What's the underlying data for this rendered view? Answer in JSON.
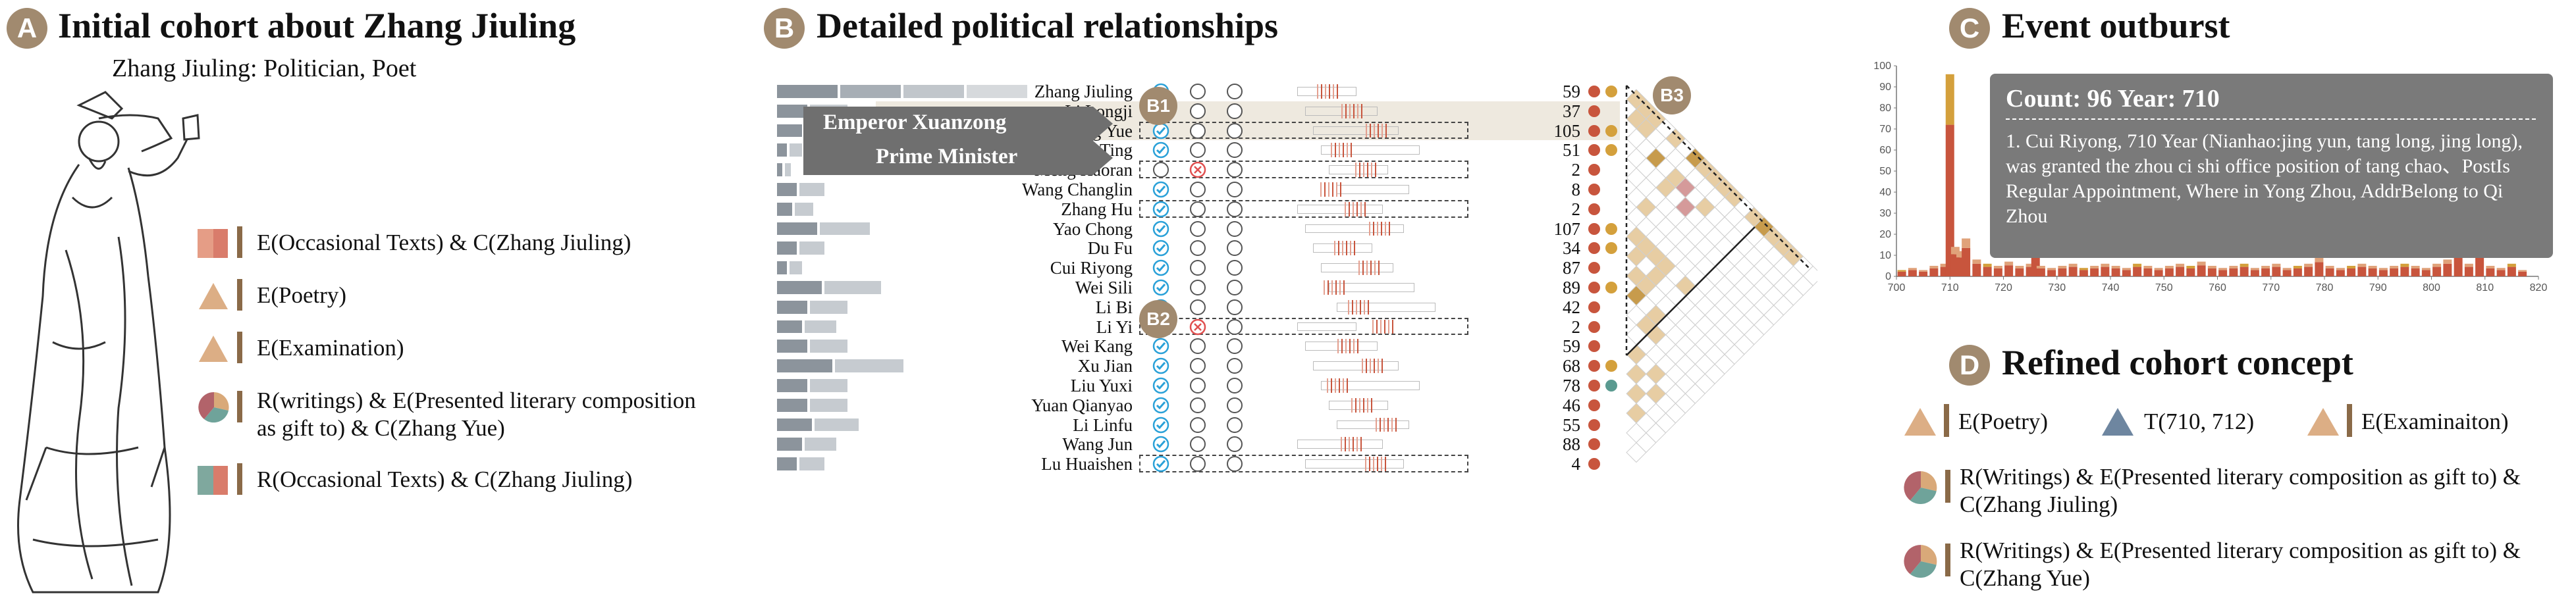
{
  "panelA": {
    "badge": "A",
    "title": "Initial cohort about Zhang Jiuling",
    "subtitle": "Zhang Jiuling: Politician, Poet",
    "legend": [
      {
        "icon": "stacked-bar-icon",
        "text": "E(Occasional Texts) & C(Zhang Jiuling)"
      },
      {
        "icon": "triangle-icon",
        "text": "E(Poetry)"
      },
      {
        "icon": "triangle-icon",
        "text": "E(Examination)"
      },
      {
        "icon": "pie-icon",
        "text": "R(writings) & E(Presented literary composition as gift to) & C(Zhang Yue)"
      },
      {
        "icon": "stacked-bar-icon",
        "text": "R(Occasional Texts) & C(Zhang Jiuling)"
      }
    ]
  },
  "panelB": {
    "badge": "B",
    "title": "Detailed political relationships",
    "b1": "B1",
    "b2": "B2",
    "b3": "B3",
    "tag_emperor": "Emperor Xuanzong",
    "tag_minister": "Prime Minister",
    "rows": [
      {
        "name": "Zhang Jiuling",
        "count": "59",
        "c1": "check",
        "c2": "empty",
        "c3": "empty",
        "bar": 0.95,
        "dot2": "#d4a03c",
        "hl": false,
        "box": false
      },
      {
        "name": "Li Longji",
        "count": "37",
        "c1": "check",
        "c2": "empty",
        "c3": "empty",
        "bar": 0.3,
        "dot2": "",
        "hl": true,
        "box": false
      },
      {
        "name": "Zhang Yue",
        "count": "105",
        "c1": "check",
        "c2": "empty",
        "c3": "empty",
        "bar": 0.25,
        "dot2": "#d4a03c",
        "hl": true,
        "box": true
      },
      {
        "name": "Su Ting",
        "count": "51",
        "c1": "check",
        "c2": "empty",
        "c3": "empty",
        "bar": 0.1,
        "dot2": "#d4a03c",
        "hl": false,
        "box": false
      },
      {
        "name": "Meng Haoran",
        "count": "2",
        "c1": "empty",
        "c2": "cross",
        "c3": "empty",
        "bar": 0.05,
        "dot2": "",
        "hl": false,
        "box": true
      },
      {
        "name": "Wang Changlin",
        "count": "8",
        "c1": "check",
        "c2": "empty",
        "c3": "empty",
        "bar": 0.2,
        "dot2": "",
        "hl": false,
        "box": false
      },
      {
        "name": "Zhang Hu",
        "count": "2",
        "c1": "check",
        "c2": "empty",
        "c3": "empty",
        "bar": 0.15,
        "dot2": "",
        "hl": false,
        "box": true
      },
      {
        "name": "Yao Chong",
        "count": "107",
        "c1": "check",
        "c2": "empty",
        "c3": "empty",
        "bar": 0.4,
        "dot2": "#d4a03c",
        "hl": false,
        "box": false
      },
      {
        "name": "Du Fu",
        "count": "34",
        "c1": "check",
        "c2": "empty",
        "c3": "empty",
        "bar": 0.2,
        "dot2": "#d4a03c",
        "hl": false,
        "box": false
      },
      {
        "name": "Cui Riyong",
        "count": "87",
        "c1": "check",
        "c2": "empty",
        "c3": "empty",
        "bar": 0.1,
        "dot2": "",
        "hl": false,
        "box": false
      },
      {
        "name": "Wei Sili",
        "count": "89",
        "c1": "check",
        "c2": "empty",
        "c3": "empty",
        "bar": 0.45,
        "dot2": "#d4a03c",
        "hl": false,
        "box": false
      },
      {
        "name": "Li Bi",
        "count": "42",
        "c1": "check",
        "c2": "empty",
        "c3": "empty",
        "bar": 0.3,
        "dot2": "",
        "hl": false,
        "box": false
      },
      {
        "name": "Li Yi",
        "count": "2",
        "c1": "empty",
        "c2": "cross",
        "c3": "empty",
        "bar": 0.25,
        "dot2": "",
        "hl": false,
        "box": true
      },
      {
        "name": "Wei Kang",
        "count": "59",
        "c1": "check",
        "c2": "empty",
        "c3": "empty",
        "bar": 0.3,
        "dot2": "",
        "hl": false,
        "box": false
      },
      {
        "name": "Xu Jian",
        "count": "68",
        "c1": "check",
        "c2": "empty",
        "c3": "empty",
        "bar": 0.55,
        "dot2": "#d4a03c",
        "hl": false,
        "box": false
      },
      {
        "name": "Liu Yuxi",
        "count": "78",
        "c1": "check",
        "c2": "empty",
        "c3": "empty",
        "bar": 0.3,
        "dot2": "#5a9a90",
        "hl": false,
        "box": false
      },
      {
        "name": "Yuan Qianyao",
        "count": "46",
        "c1": "check",
        "c2": "empty",
        "c3": "empty",
        "bar": 0.3,
        "dot2": "",
        "hl": false,
        "box": false
      },
      {
        "name": "Li Linfu",
        "count": "55",
        "c1": "check",
        "c2": "empty",
        "c3": "empty",
        "bar": 0.35,
        "dot2": "",
        "hl": false,
        "box": false
      },
      {
        "name": "Wang Jun",
        "count": "88",
        "c1": "check",
        "c2": "empty",
        "c3": "empty",
        "bar": 0.25,
        "dot2": "",
        "hl": false,
        "box": false
      },
      {
        "name": "Lu Huaishen",
        "count": "4",
        "c1": "check",
        "c2": "empty",
        "c3": "empty",
        "bar": 0.2,
        "dot2": "",
        "hl": false,
        "box": true
      }
    ]
  },
  "panelC": {
    "badge": "C",
    "title": "Event outburst",
    "tooltip_header": "Count: 96   Year: 710",
    "tooltip_body": "1. Cui Riyong, 710 Year (Nianhao:jing yun, tang long, jing long), was granted the zhou ci shi office position of tang chao、PostIs Regular Appointment, Where in Yong Zhou, AddrBelong to Qi Zhou",
    "chart_data": {
      "type": "bar",
      "xlim": [
        700,
        820
      ],
      "ylim": [
        0,
        100
      ],
      "xticks": [
        700,
        710,
        720,
        730,
        740,
        750,
        760,
        770,
        780,
        790,
        800,
        810,
        820
      ],
      "yticks": [
        0,
        10,
        20,
        30,
        40,
        50,
        60,
        70,
        80,
        90,
        100
      ],
      "x": [
        701,
        703,
        705,
        707,
        709,
        710,
        711,
        712,
        713,
        715,
        717,
        719,
        721,
        723,
        725,
        726,
        727,
        729,
        731,
        733,
        735,
        737,
        739,
        741,
        743,
        745,
        747,
        749,
        751,
        753,
        755,
        757,
        759,
        761,
        763,
        765,
        767,
        769,
        771,
        773,
        775,
        777,
        779,
        781,
        783,
        785,
        787,
        789,
        791,
        793,
        795,
        797,
        799,
        801,
        803,
        805,
        807,
        809,
        811,
        813,
        815,
        817
      ],
      "values": [
        3,
        4,
        3,
        5,
        6,
        96,
        14,
        12,
        18,
        8,
        6,
        5,
        7,
        5,
        6,
        16,
        5,
        4,
        5,
        6,
        4,
        5,
        6,
        5,
        4,
        6,
        5,
        4,
        5,
        6,
        5,
        7,
        5,
        4,
        5,
        6,
        4,
        5,
        6,
        4,
        5,
        6,
        9,
        5,
        4,
        5,
        6,
        5,
        4,
        5,
        6,
        5,
        4,
        6,
        8,
        20,
        6,
        14,
        5,
        4,
        6,
        3
      ]
    }
  },
  "panelD": {
    "badge": "D",
    "title": "Refined cohort concept",
    "chips": [
      {
        "icon": "triangle-icon",
        "text": "E(Poetry)"
      },
      {
        "icon": "triangle-icon",
        "text": "T(710, 712)"
      },
      {
        "icon": "triangle-icon",
        "text": "E(Examinaiton)"
      }
    ],
    "items": [
      {
        "icon": "pie-icon",
        "text": "R(Writings) & E(Presented literary composition as gift to) & C(Zhang Jiuling)"
      },
      {
        "icon": "pie-icon",
        "text": "R(Writings) & E(Presented literary composition as gift to) & C(Zhang Yue)"
      }
    ]
  },
  "colors": {
    "badge": "#a18a6f",
    "check": "#2aa1d8",
    "cross": "#e05050",
    "dot": "#c8553d",
    "tan": "#e7cda3",
    "gray": "#8c949c"
  }
}
